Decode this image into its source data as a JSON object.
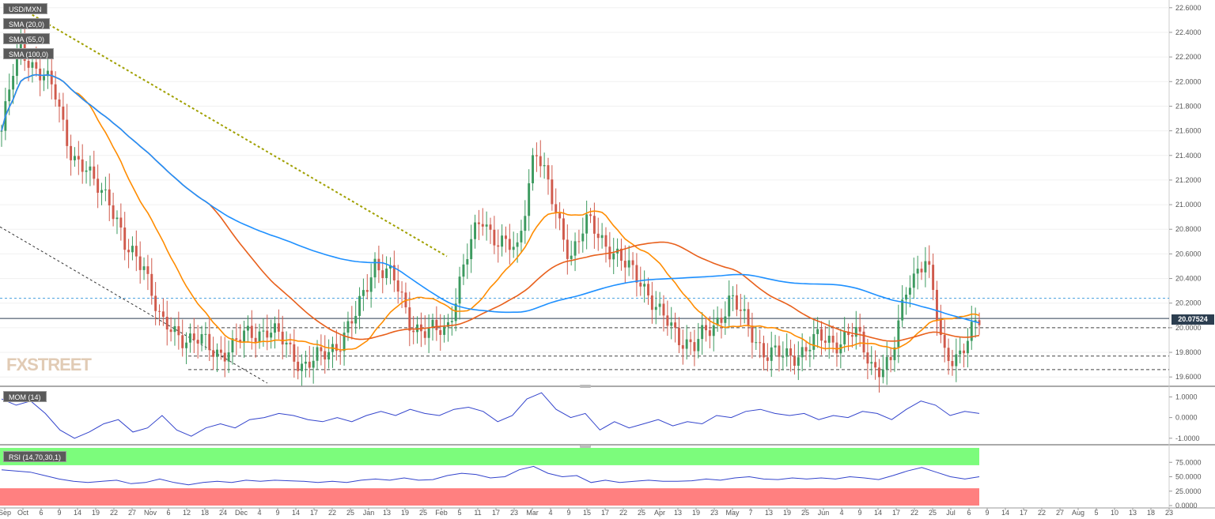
{
  "chart_data": {
    "type": "candlestick",
    "symbol": "USD/MXN",
    "last_price": "20.07524",
    "overlays": [
      {
        "name": "SMA (20,0)",
        "color": "#ff8c00"
      },
      {
        "name": "SMA (55,0)",
        "color": "#e8601c"
      },
      {
        "name": "SMA (100,0)",
        "color": "#1e90ff"
      }
    ],
    "price_axis": {
      "ylim": [
        19.55,
        22.65
      ],
      "ticks": [
        "22.6000",
        "22.4000",
        "22.2000",
        "22.0000",
        "21.8000",
        "21.6000",
        "21.4000",
        "21.2000",
        "21.0000",
        "20.8000",
        "20.6000",
        "20.4000",
        "20.2000",
        "20.0000",
        "19.8000",
        "19.6000"
      ]
    },
    "date_axis": [
      "Sep",
      "Oct",
      "6",
      "9",
      "14",
      "19",
      "22",
      "27",
      "Nov",
      "6",
      "12",
      "18",
      "24",
      "Dec",
      "4",
      "9",
      "14",
      "17",
      "22",
      "25",
      "Jan",
      "13",
      "19",
      "25",
      "Feb",
      "5",
      "11",
      "17",
      "23",
      "Mar",
      "4",
      "9",
      "15",
      "17",
      "22",
      "25",
      "Apr",
      "13",
      "19",
      "23",
      "May",
      "7",
      "13",
      "19",
      "25",
      "Jun",
      "4",
      "9",
      "14",
      "17",
      "22",
      "25",
      "Jul",
      "6",
      "9",
      "14",
      "17",
      "22",
      "27",
      "Aug",
      "5",
      "10",
      "13",
      "18",
      "23"
    ],
    "key_levels": [
      20.24,
      20.0,
      19.77,
      19.66
    ],
    "closes": [
      21.6,
      22.3,
      22.1,
      21.9,
      21.4,
      21.2,
      21.1,
      20.6,
      20.55,
      20.0,
      19.95,
      19.9,
      19.8,
      19.85,
      19.95,
      20.0,
      19.85,
      19.7,
      19.75,
      19.9,
      20.1,
      20.55,
      20.4,
      20.05,
      19.95,
      19.98,
      20.5,
      20.9,
      20.7,
      20.6,
      21.5,
      21.0,
      20.6,
      20.85,
      20.7,
      20.5,
      20.4,
      20.1,
      19.95,
      19.85,
      20.0,
      20.25,
      20.0,
      19.8,
      19.75,
      19.82,
      19.9,
      19.9,
      19.95,
      19.7,
      19.68,
      20.4,
      20.55,
      19.8,
      19.78,
      20.07
    ],
    "candle_count": 255,
    "indicators": [
      {
        "name": "MOM (14)",
        "ticks": [
          "1.0000",
          "0.0000",
          "-1.0000"
        ],
        "ylim": [
          -1.2,
          1.4
        ],
        "values": [
          0.9,
          0.6,
          0.8,
          0.2,
          -0.6,
          -1.0,
          -0.7,
          -0.3,
          -0.1,
          -0.7,
          -0.5,
          0.1,
          -0.6,
          -0.9,
          -0.5,
          -0.3,
          -0.5,
          -0.1,
          0.0,
          0.2,
          0.1,
          -0.1,
          -0.2,
          0.0,
          -0.2,
          0.1,
          0.3,
          0.1,
          0.4,
          0.2,
          0.1,
          0.4,
          0.5,
          0.3,
          -0.2,
          0.1,
          0.9,
          1.2,
          0.4,
          0.0,
          0.2,
          -0.6,
          -0.2,
          -0.5,
          -0.3,
          -0.1,
          -0.4,
          -0.2,
          -0.3,
          0.1,
          0.0,
          0.3,
          0.4,
          0.2,
          0.1,
          0.2,
          -0.1,
          0.1,
          0.0,
          0.3,
          0.2,
          -0.1,
          0.4,
          0.8,
          0.6,
          0.1,
          0.3,
          0.2
        ]
      },
      {
        "name": "RSI (14,70,30,1)",
        "ticks": [
          "75.0000",
          "50.0000",
          "25.0000",
          "0.0000"
        ],
        "ylim": [
          0,
          100
        ],
        "overbought": 70,
        "oversold": 30,
        "overbought_color": "#7cfc7c",
        "oversold_color": "#ff8080",
        "values": [
          62,
          60,
          58,
          52,
          46,
          42,
          40,
          42,
          44,
          38,
          40,
          46,
          40,
          36,
          40,
          42,
          40,
          44,
          42,
          44,
          43,
          42,
          40,
          42,
          40,
          44,
          46,
          44,
          48,
          44,
          45,
          52,
          56,
          54,
          48,
          50,
          62,
          68,
          56,
          50,
          52,
          40,
          44,
          40,
          42,
          44,
          42,
          42,
          43,
          46,
          44,
          48,
          50,
          46,
          45,
          48,
          46,
          48,
          46,
          50,
          48,
          45,
          52,
          60,
          66,
          58,
          50,
          46,
          50
        ]
      }
    ]
  }
}
